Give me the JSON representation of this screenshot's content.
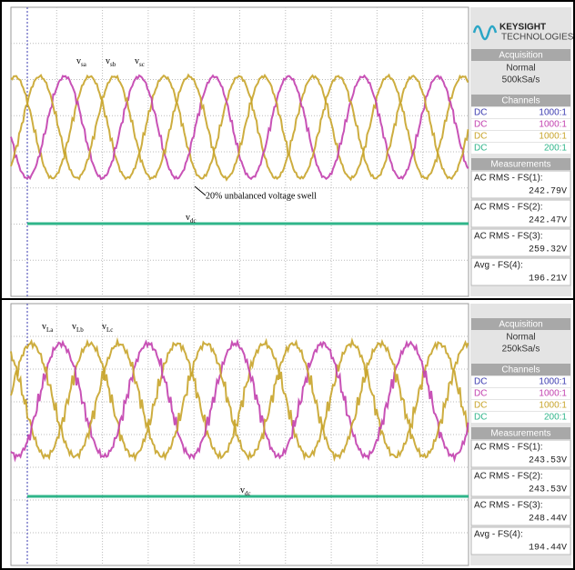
{
  "panels": [
    {
      "wave_labels": [
        {
          "main": "v",
          "sub": "sa"
        },
        {
          "main": "v",
          "sub": "sb"
        },
        {
          "main": "v",
          "sub": "sc"
        }
      ],
      "dc_label": {
        "main": "v",
        "sub": "dc"
      },
      "annotation": "20% unbalanced voltage swell",
      "brand": "KEYSIGHT",
      "brand_sub": "TECHNOLOGIES",
      "acquisition": {
        "header": "Acquisition",
        "mode": "Normal",
        "rate": "500kSa/s"
      },
      "channels": {
        "header": "Channels",
        "rows": [
          [
            "DC",
            "1000:1"
          ],
          [
            "DC",
            "1000:1"
          ],
          [
            "DC",
            "1000:1"
          ],
          [
            "DC",
            "200:1"
          ]
        ]
      },
      "measurements": {
        "header": "Measurements",
        "items": [
          {
            "label": "AC RMS - FS(1):",
            "value": "242.79V"
          },
          {
            "label": "AC RMS - FS(2):",
            "value": "242.47V"
          },
          {
            "label": "AC RMS - FS(3):",
            "value": "259.32V"
          },
          {
            "label": "Avg - FS(4):",
            "value": "196.21V"
          }
        ]
      }
    },
    {
      "wave_labels": [
        {
          "main": "v",
          "sub": "La"
        },
        {
          "main": "v",
          "sub": "Lb"
        },
        {
          "main": "v",
          "sub": "Lc"
        }
      ],
      "dc_label": {
        "main": "v",
        "sub": "dc"
      },
      "acquisition": {
        "header": "Acquisition",
        "mode": "Normal",
        "rate": "250kSa/s"
      },
      "channels": {
        "header": "Channels",
        "rows": [
          [
            "DC",
            "1000:1"
          ],
          [
            "DC",
            "1000:1"
          ],
          [
            "DC",
            "1000:1"
          ],
          [
            "DC",
            "200:1"
          ]
        ]
      },
      "measurements": {
        "header": "Measurements",
        "items": [
          {
            "label": "AC RMS - FS(1):",
            "value": "243.53V"
          },
          {
            "label": "AC RMS - FS(2):",
            "value": "243.53V"
          },
          {
            "label": "AC RMS - FS(3):",
            "value": "248.44V"
          },
          {
            "label": "Avg - FS(4):",
            "value": "194.44V"
          }
        ]
      }
    }
  ]
}
